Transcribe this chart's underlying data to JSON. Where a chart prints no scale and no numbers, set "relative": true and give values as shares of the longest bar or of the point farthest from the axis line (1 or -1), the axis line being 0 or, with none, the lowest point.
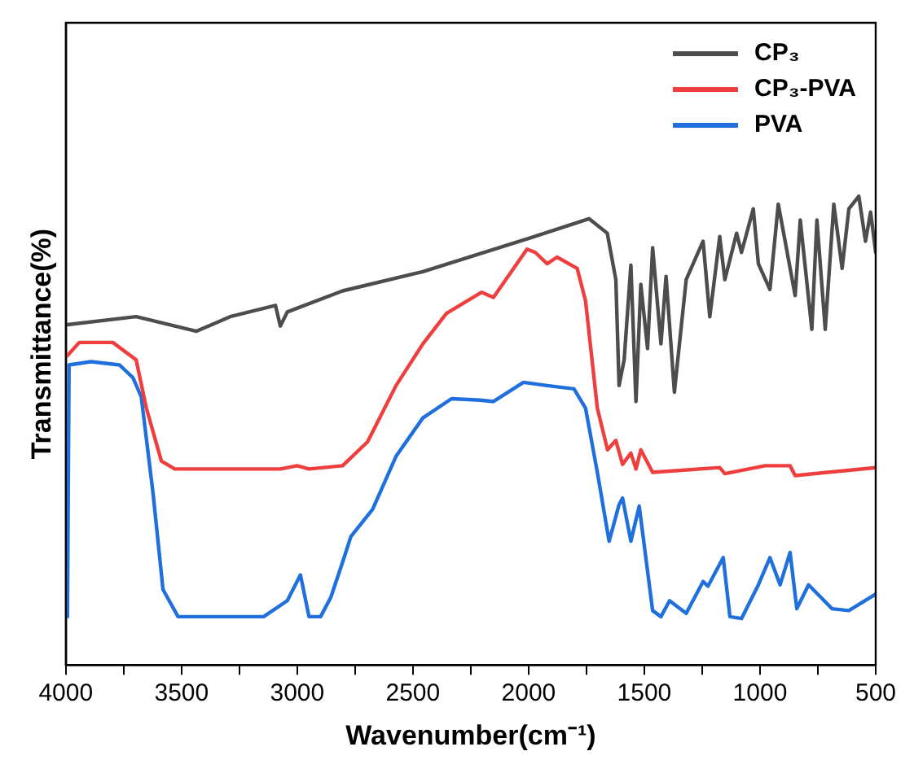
{
  "chart_data": {
    "type": "line",
    "xlabel": "Wavenumber(cm⁻¹)",
    "ylabel": "Transmittance(%)",
    "relative": true,
    "xlim": [
      4000,
      500
    ],
    "xticks": [
      4000,
      {
        "value": 3750,
        "label": null
      },
      3500,
      {
        "value": 3250,
        "label": null
      },
      3000,
      {
        "value": 2750,
        "label": null
      },
      2500,
      {
        "value": 2250,
        "label": null
      },
      2000,
      {
        "value": 1750,
        "label": null
      },
      1500,
      {
        "value": 1250,
        "label": null
      },
      1000,
      {
        "value": 750,
        "label": null
      },
      500
    ],
    "grid": false,
    "legend": "top right",
    "marker": "none",
    "line_style": "solid",
    "series": [
      {
        "name": "CP₃",
        "color": "#4d4d4d",
        "x": [
          3993,
          3696,
          3435,
          3290,
          3094,
          3073,
          3043,
          2804,
          2457,
          1993,
          1739,
          1660,
          1623,
          1609,
          1587,
          1558,
          1536,
          1515,
          1486,
          1464,
          1428,
          1406,
          1370,
          1319,
          1246,
          1217,
          1174,
          1152,
          1101,
          1080,
          1029,
          1007,
          957,
          921,
          848,
          826,
          776,
          754,
          718,
          681,
          645,
          616,
          573,
          544,
          522,
          500
        ],
        "values": [
          0.726,
          0.743,
          0.712,
          0.743,
          0.767,
          0.723,
          0.753,
          0.798,
          0.839,
          0.911,
          0.952,
          0.921,
          0.822,
          0.596,
          0.651,
          0.853,
          0.562,
          0.812,
          0.675,
          0.89,
          0.685,
          0.829,
          0.582,
          0.822,
          0.904,
          0.743,
          0.914,
          0.822,
          0.921,
          0.88,
          0.973,
          0.856,
          0.801,
          0.983,
          0.788,
          0.949,
          0.716,
          0.949,
          0.716,
          0.983,
          0.846,
          0.973,
          1,
          0.904,
          0.966,
          0.88
        ]
      },
      {
        "name": "CP₃-PVA",
        "color": "#ee3e3e",
        "x": [
          3993,
          3942,
          3797,
          3696,
          3652,
          3587,
          3529,
          3073,
          3000,
          2949,
          2804,
          2696,
          2573,
          2457,
          2355,
          2203,
          2152,
          2007,
          1971,
          1920,
          1877,
          1790,
          1754,
          1703,
          1659,
          1623,
          1594,
          1558,
          1536,
          1515,
          1464,
          1174,
          1152,
          978,
          870,
          848,
          500
        ],
        "values": [
          0.66,
          0.688,
          0.688,
          0.651,
          0.548,
          0.435,
          0.418,
          0.418,
          0.425,
          0.418,
          0.425,
          0.476,
          0.596,
          0.685,
          0.75,
          0.795,
          0.784,
          0.887,
          0.88,
          0.856,
          0.87,
          0.846,
          0.777,
          0.548,
          0.459,
          0.479,
          0.428,
          0.452,
          0.418,
          0.459,
          0.411,
          0.421,
          0.408,
          0.425,
          0.425,
          0.404,
          0.421
        ]
      },
      {
        "name": "PVA",
        "color": "#1f6fdc",
        "x": [
          3993,
          3986,
          3891,
          3768,
          3710,
          3674,
          3623,
          3580,
          3515,
          3145,
          3043,
          2986,
          2949,
          2899,
          2855,
          2804,
          2768,
          2674,
          2573,
          2457,
          2333,
          2210,
          2152,
          2022,
          1920,
          1804,
          1754,
          1703,
          1652,
          1609,
          1594,
          1558,
          1522,
          1464,
          1428,
          1391,
          1319,
          1246,
          1225,
          1159,
          1130,
          1080,
          1007,
          957,
          913,
          870,
          841,
          790,
          689,
          616,
          500
        ],
        "values": [
          0.103,
          0.64,
          0.647,
          0.64,
          0.613,
          0.572,
          0.366,
          0.161,
          0.103,
          0.103,
          0.137,
          0.192,
          0.103,
          0.103,
          0.144,
          0.219,
          0.274,
          0.332,
          0.445,
          0.527,
          0.568,
          0.565,
          0.562,
          0.603,
          0.596,
          0.589,
          0.548,
          0.411,
          0.264,
          0.342,
          0.356,
          0.264,
          0.339,
          0.116,
          0.103,
          0.137,
          0.11,
          0.178,
          0.168,
          0.229,
          0.103,
          0.099,
          0.171,
          0.229,
          0.171,
          0.24,
          0.12,
          0.171,
          0.12,
          0.116,
          0.151
        ]
      }
    ]
  }
}
